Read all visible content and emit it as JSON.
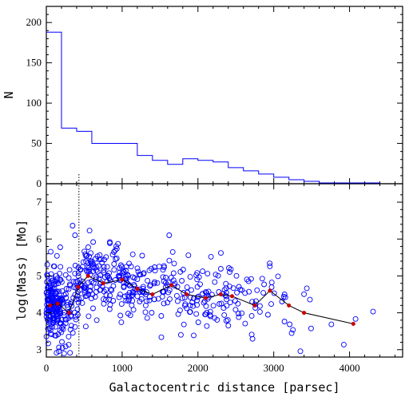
{
  "colors": {
    "histogram": "#0000ff",
    "scatter_points": "#0000ff",
    "binned_mean_line": "#000000",
    "binned_mean_markers": "#cc0000",
    "axes": "#000000"
  },
  "chart_data": [
    {
      "type": "histogram",
      "xlabel": "",
      "ylabel": "N",
      "xlim": [
        0,
        4700
      ],
      "ylim": [
        0,
        220
      ],
      "xticks": [
        0,
        1000,
        2000,
        3000,
        4000
      ],
      "yticks": [
        0,
        50,
        100,
        150,
        200
      ],
      "ytick_labels": [
        "0",
        "50",
        "100",
        "150",
        "200"
      ],
      "bin_edges": [
        0,
        200,
        400,
        600,
        800,
        1000,
        1200,
        1400,
        1600,
        1800,
        2000,
        2200,
        2400,
        2600,
        2800,
        3000,
        3200,
        3400,
        3600,
        3800,
        4000,
        4200,
        4400,
        4600
      ],
      "counts": [
        188,
        69,
        65,
        50,
        50,
        50,
        35,
        29,
        24,
        31,
        29,
        27,
        20,
        16,
        12,
        8,
        5,
        3,
        1,
        1,
        1,
        1,
        0
      ]
    },
    {
      "type": "scatter",
      "xlabel": "Galactocentric distance [parsec]",
      "ylabel": "log(Mass) [Mo]",
      "xlim": [
        0,
        4700
      ],
      "ylim": [
        2.8,
        7.5
      ],
      "xticks": [
        0,
        1000,
        2000,
        3000,
        4000
      ],
      "xtick_labels": [
        "0",
        "1000",
        "2000",
        "3000",
        "4000"
      ],
      "yticks": [
        3,
        4,
        5,
        6,
        7
      ],
      "ytick_labels": [
        "3",
        "4",
        "5",
        "6",
        "7"
      ],
      "reference_line_x": 430,
      "binned_mean": {
        "x": [
          50,
          150,
          300,
          420,
          550,
          750,
          1000,
          1200,
          1400,
          1650,
          1850,
          2100,
          2300,
          2450,
          2750,
          2950,
          3200,
          3400,
          4050
        ],
        "y": [
          4.2,
          4.25,
          4.0,
          4.7,
          5.0,
          4.8,
          4.9,
          4.65,
          4.5,
          4.75,
          4.5,
          4.4,
          4.5,
          4.45,
          4.2,
          4.6,
          4.2,
          4.0,
          3.7
        ]
      },
      "points_generation_note": "points are rendered from seeded distribution below"
    }
  ]
}
